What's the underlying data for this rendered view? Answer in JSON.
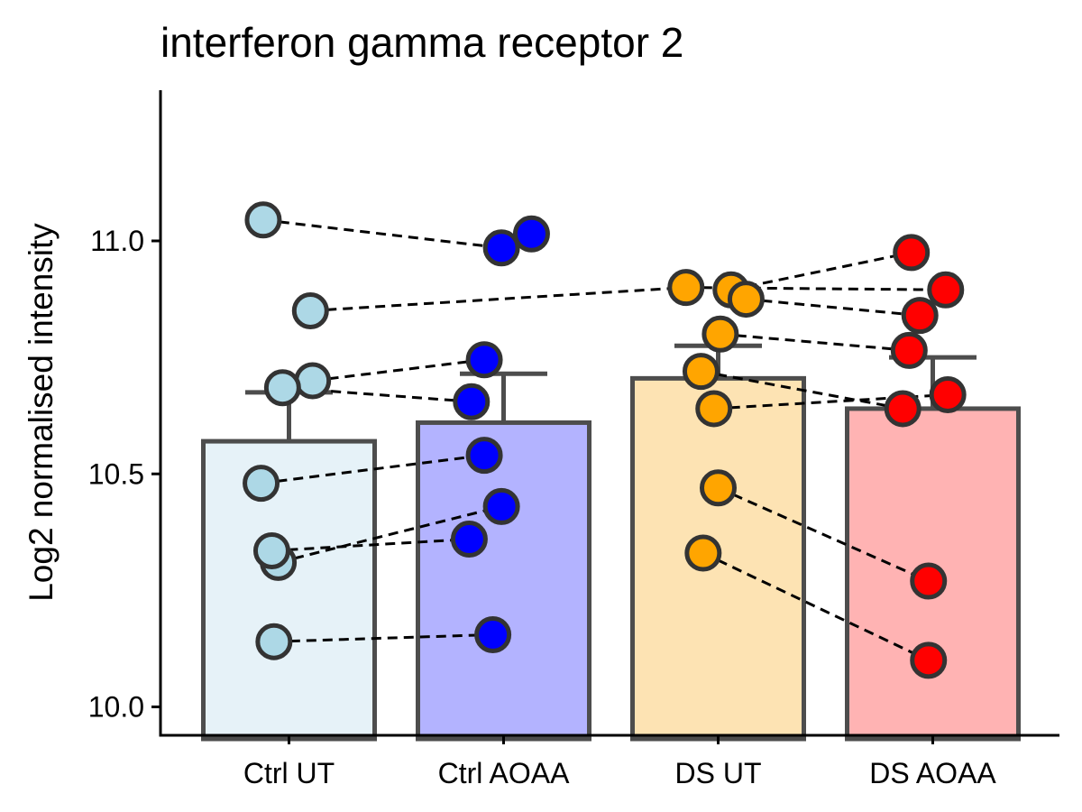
{
  "chart_data": {
    "type": "bar",
    "title": "interferon gamma receptor 2",
    "ylabel": "Log2 normalised intensity",
    "xlabel": "",
    "ylim": [
      9.93,
      11.33
    ],
    "yticks": [
      10.0,
      10.5,
      11.0
    ],
    "ytick_labels": [
      "10.0",
      "10.5",
      "11.0"
    ],
    "grid": false,
    "legend": "none",
    "categories": [
      "Ctrl UT",
      "Ctrl AOAA",
      "DS UT",
      "DS AOAA"
    ],
    "series": [
      {
        "values": [
          10.57,
          10.61,
          10.705,
          10.64
        ],
        "error_upper": [
          10.675,
          10.715,
          10.775,
          10.75
        ]
      }
    ],
    "bar_colors": [
      "#e6f2f8",
      "#b3b3ff",
      "#fde3b3",
      "#ffb3b3"
    ],
    "point_colors": [
      "#add8e6",
      "#0000ff",
      "#ffa500",
      "#ff0000"
    ],
    "bar_outline_color": "#4d4d4d",
    "points": [
      [
        {
          "dx": -0.12,
          "y": 11.045
        },
        {
          "dx": 0.1,
          "y": 10.85
        },
        {
          "dx": 0.11,
          "y": 10.7
        },
        {
          "dx": -0.03,
          "y": 10.685
        },
        {
          "dx": -0.13,
          "y": 10.48
        },
        {
          "dx": -0.05,
          "y": 10.31
        },
        {
          "dx": -0.08,
          "y": 10.335
        },
        {
          "dx": -0.07,
          "y": 10.14
        }
      ],
      [
        {
          "dx": 0.13,
          "y": 11.015
        },
        {
          "dx": -0.01,
          "y": 10.985
        },
        {
          "dx": -0.09,
          "y": 10.745
        },
        {
          "dx": -0.15,
          "y": 10.655
        },
        {
          "dx": -0.09,
          "y": 10.54
        },
        {
          "dx": -0.01,
          "y": 10.43
        },
        {
          "dx": -0.16,
          "y": 10.36
        },
        {
          "dx": -0.05,
          "y": 10.155
        }
      ],
      [
        {
          "dx": -0.15,
          "y": 10.9
        },
        {
          "dx": 0.06,
          "y": 10.895
        },
        {
          "dx": 0.13,
          "y": 10.875
        },
        {
          "dx": 0.01,
          "y": 10.8
        },
        {
          "dx": -0.08,
          "y": 10.72
        },
        {
          "dx": -0.02,
          "y": 10.64
        },
        {
          "dx": 0.0,
          "y": 10.47
        },
        {
          "dx": -0.07,
          "y": 10.33
        }
      ],
      [
        {
          "dx": -0.1,
          "y": 10.975
        },
        {
          "dx": 0.06,
          "y": 10.895
        },
        {
          "dx": -0.06,
          "y": 10.84
        },
        {
          "dx": -0.11,
          "y": 10.765
        },
        {
          "dx": 0.07,
          "y": 10.67
        },
        {
          "dx": -0.14,
          "y": 10.64
        },
        {
          "dx": -0.02,
          "y": 10.27
        },
        {
          "dx": -0.02,
          "y": 10.1
        }
      ]
    ],
    "pairs": [
      [
        [
          0,
          0
        ],
        [
          1,
          1
        ]
      ],
      [
        [
          0,
          1
        ],
        [
          2,
          0
        ]
      ],
      [
        [
          0,
          2
        ],
        [
          1,
          2
        ]
      ],
      [
        [
          0,
          3
        ],
        [
          1,
          3
        ]
      ],
      [
        [
          0,
          4
        ],
        [
          1,
          4
        ]
      ],
      [
        [
          0,
          5
        ],
        [
          1,
          5
        ]
      ],
      [
        [
          0,
          6
        ],
        [
          1,
          6
        ]
      ],
      [
        [
          0,
          7
        ],
        [
          1,
          7
        ]
      ],
      [
        [
          2,
          0
        ],
        [
          3,
          1
        ]
      ],
      [
        [
          2,
          1
        ],
        [
          3,
          0
        ]
      ],
      [
        [
          2,
          2
        ],
        [
          3,
          2
        ]
      ],
      [
        [
          2,
          3
        ],
        [
          3,
          3
        ]
      ],
      [
        [
          2,
          4
        ],
        [
          3,
          5
        ]
      ],
      [
        [
          2,
          5
        ],
        [
          3,
          4
        ]
      ],
      [
        [
          2,
          6
        ],
        [
          3,
          6
        ]
      ],
      [
        [
          2,
          7
        ],
        [
          3,
          7
        ]
      ]
    ]
  }
}
